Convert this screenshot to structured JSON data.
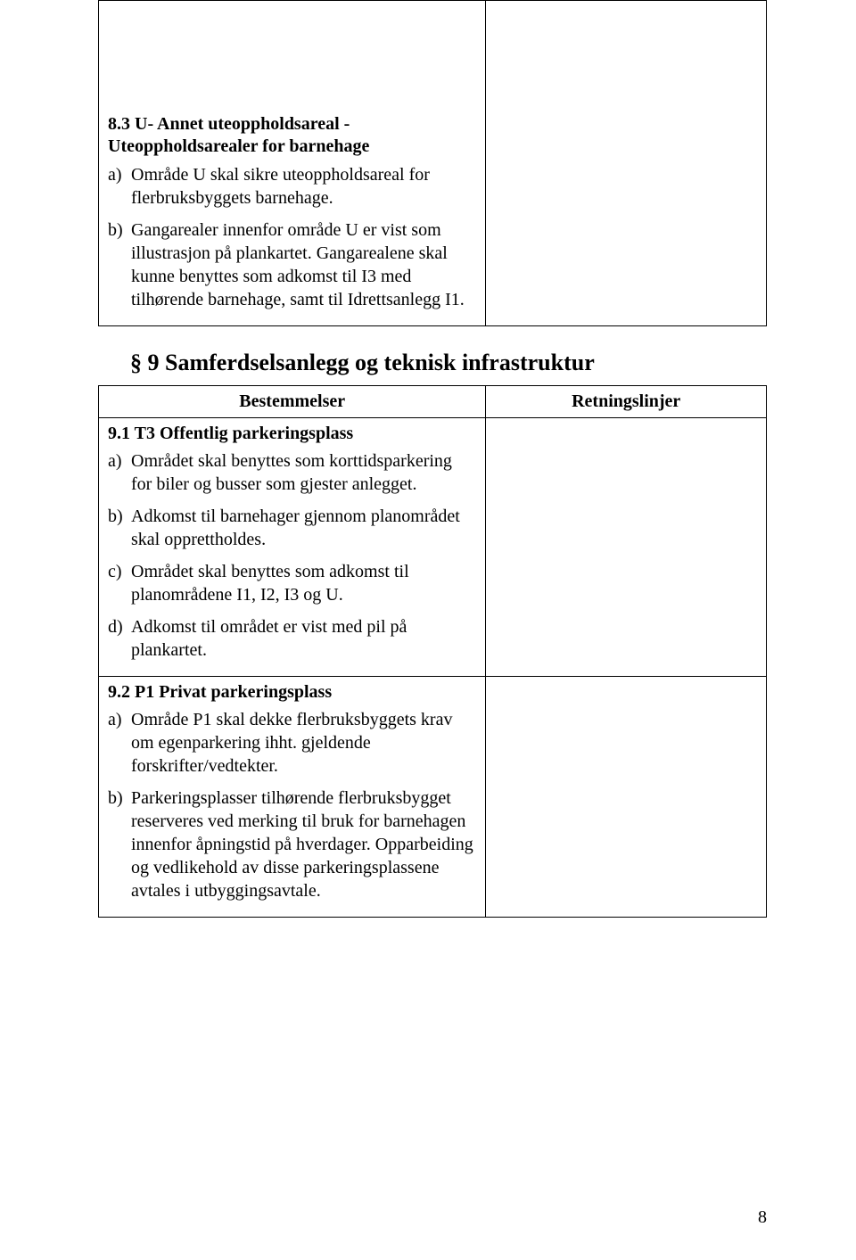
{
  "section83": {
    "title": "8.3 U- Annet uteoppholdsareal - Uteoppholdsarealer for barnehage",
    "items": [
      {
        "marker": "a)",
        "text": "Område U skal sikre uteoppholdsareal for flerbruksbyggets barnehage."
      },
      {
        "marker": "b)",
        "text": "Gangarealer innenfor område U er vist som illustrasjon på plankartet. Gangarealene skal kunne benyttes som adkomst til I3 med tilhørende barnehage, samt til Idrettsanlegg I1."
      }
    ]
  },
  "section9": {
    "heading": "§ 9 Samferdselsanlegg og teknisk infrastruktur",
    "col_left_header": "Bestemmelser",
    "col_right_header": "Retningslinjer"
  },
  "section91": {
    "title": "9.1 T3 Offentlig parkeringsplass",
    "items": [
      {
        "marker": "a)",
        "text": "Området skal benyttes som korttidsparkering for biler og busser som gjester anlegget."
      },
      {
        "marker": "b)",
        "text": "Adkomst til barnehager gjennom planområdet skal opprettholdes."
      },
      {
        "marker": "c)",
        "text": "Området skal benyttes som adkomst til planområdene I1, I2, I3 og U."
      },
      {
        "marker": "d)",
        "text": "Adkomst til området er vist med pil på plankartet."
      }
    ]
  },
  "section92": {
    "title": "9.2 P1 Privat parkeringsplass",
    "items": [
      {
        "marker": "a)",
        "text": "Område P1 skal dekke flerbruksbyggets krav om egenparkering ihht. gjeldende forskrifter/vedtekter."
      },
      {
        "marker": "b)",
        "text": "Parkeringsplasser tilhørende flerbruksbygget reserveres ved merking til bruk for barnehagen innenfor åpningstid på hverdager. Opparbeiding og vedlikehold av disse parkeringsplassene avtales i utbyggingsavtale."
      }
    ]
  },
  "page_number": "8"
}
